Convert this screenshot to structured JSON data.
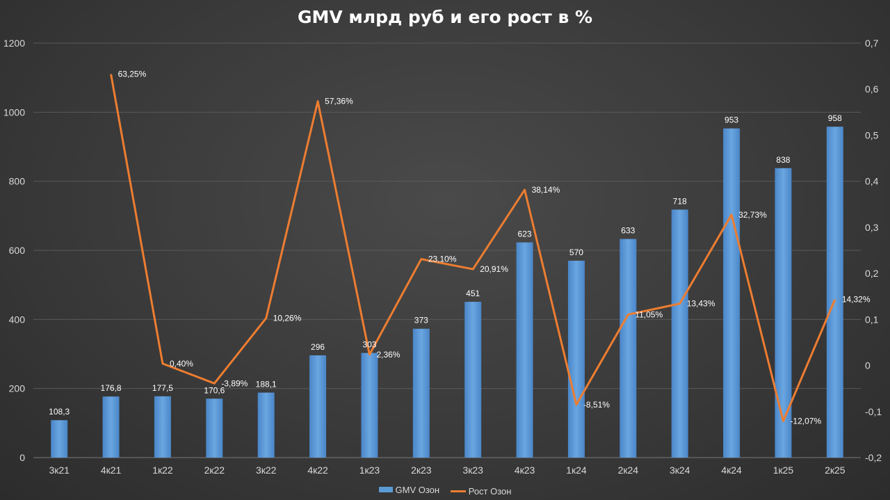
{
  "chart_data": {
    "type": "bar",
    "title": "GMV млрд руб и его рост в %",
    "categories": [
      "3к21",
      "4к21",
      "1к22",
      "2к22",
      "3к22",
      "4к22",
      "1к23",
      "2к23",
      "3к23",
      "4к23",
      "1к24",
      "2к24",
      "3к24",
      "4к24",
      "1к25",
      "2к25"
    ],
    "series": [
      {
        "name": "GMV Озон",
        "type": "bar",
        "axis": "left",
        "color": "#5b9bd5",
        "values": [
          108.3,
          176.8,
          177.5,
          170.6,
          188.1,
          296,
          303,
          373,
          451,
          623,
          570,
          633,
          718,
          953,
          838,
          958
        ],
        "labels": [
          "108,3",
          "176,8",
          "177,5",
          "170,6",
          "188,1",
          "296",
          "303",
          "373",
          "451",
          "623",
          "570",
          "633",
          "718",
          "953",
          "838",
          "958"
        ]
      },
      {
        "name": "Рост Озон",
        "type": "line",
        "axis": "right",
        "color": "#ed7d31",
        "values": [
          null,
          0.6325,
          0.004,
          -0.0389,
          0.1026,
          0.5736,
          0.0236,
          0.231,
          0.2091,
          0.3814,
          -0.0851,
          0.1105,
          0.1343,
          0.3273,
          -0.1207,
          0.1432
        ],
        "labels": [
          null,
          "63,25%",
          "0,40%",
          "-3,89%",
          "10,26%",
          "57,36%",
          "2,36%",
          "23,10%",
          "20,91%",
          "38,14%",
          "-8,51%",
          "11,05%",
          "13,43%",
          "32,73%",
          "-12,07%",
          "14,32%"
        ]
      }
    ],
    "y_left": {
      "min": 0,
      "max": 1200,
      "ticks": [
        "0",
        "200",
        "400",
        "600",
        "800",
        "1000",
        "1200"
      ]
    },
    "y_right": {
      "min": -0.2,
      "max": 0.7,
      "ticks": [
        "-0,2",
        "-0,1",
        "0",
        "0,1",
        "0,2",
        "0,3",
        "0,4",
        "0,5",
        "0,6",
        "0,7"
      ]
    },
    "grid": true,
    "legend_position": "bottom"
  }
}
